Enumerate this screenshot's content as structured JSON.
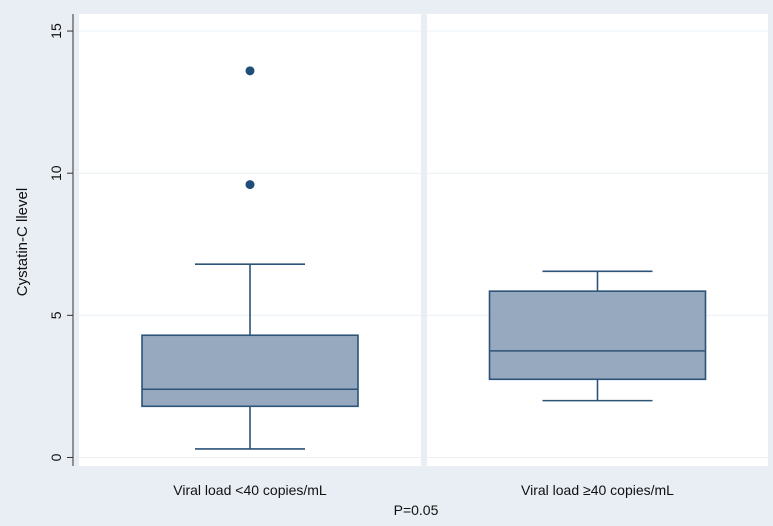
{
  "chart_data": {
    "type": "box",
    "title": "",
    "ylabel": "Cystatin-C llevel",
    "xlabel": "P=0.05",
    "ylim": [
      -0.3,
      15.6
    ],
    "yticks": [
      0,
      5,
      10,
      15
    ],
    "grid": true,
    "groups": [
      {
        "label": "Viral load <40 copies/mL",
        "whisker_low": 0.3,
        "q1": 1.8,
        "median": 2.4,
        "q3": 4.3,
        "whisker_high": 6.8,
        "outliers": [
          9.6,
          13.6
        ]
      },
      {
        "label": "Viral load  ≥40 copies/mL",
        "whisker_low": 2.0,
        "q1": 2.75,
        "median": 3.75,
        "q3": 5.85,
        "whisker_high": 6.55,
        "outliers": []
      }
    ],
    "colors": {
      "box_fill": "#96a9bf",
      "box_stroke": "#2c5378",
      "outlier": "#1f4e79",
      "grid": "#eaf0f4",
      "panel_bg": "#ffffff",
      "outer_bg": "#e8eef4"
    }
  }
}
